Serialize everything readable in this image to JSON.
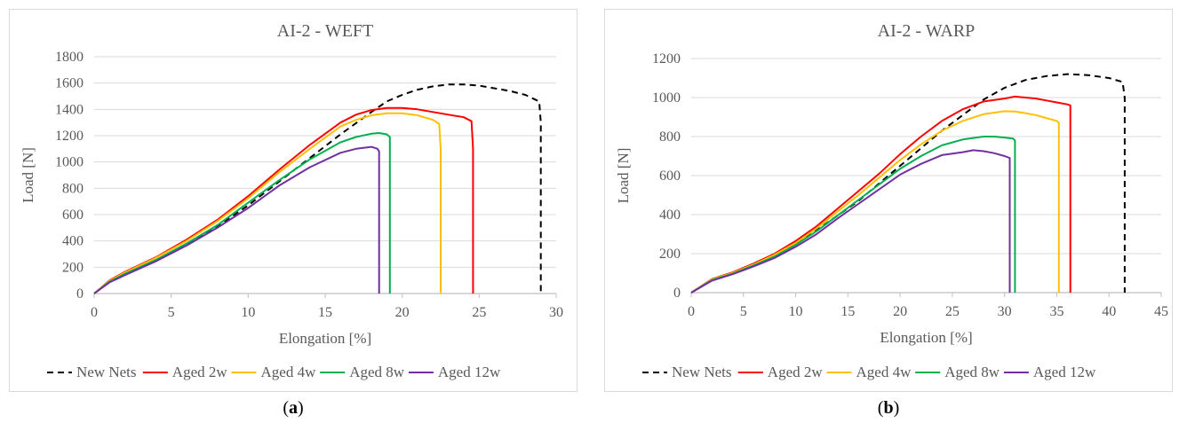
{
  "captions": [
    {
      "pre": "(",
      "letter": "a",
      "post": ")"
    },
    {
      "pre": "(",
      "letter": "b",
      "post": ")"
    }
  ],
  "colors": {
    "new_nets": "#000000",
    "aged_2w": "#ff0000",
    "aged_4w": "#ffc000",
    "aged_8w": "#00b050",
    "aged_12w": "#7030a0",
    "axis": "#bfbfbf",
    "grid": "#d9d9d9",
    "text": "#595959"
  },
  "chart_data": [
    {
      "type": "line",
      "title": "AI-2 - WEFT",
      "xlabel": "Elongation [%]",
      "ylabel": "Load [N]",
      "xlim": [
        0,
        30
      ],
      "ylim": [
        0,
        1800
      ],
      "xticks": [
        0,
        5,
        10,
        15,
        20,
        25,
        30
      ],
      "yticks": [
        0,
        200,
        400,
        600,
        800,
        1000,
        1200,
        1400,
        1600,
        1800
      ],
      "grid": "horizontal",
      "legend_position": "bottom",
      "series": [
        {
          "name": "New Nets",
          "color": "#000000",
          "dash": true,
          "x": [
            0,
            1,
            2,
            4,
            6,
            8,
            10,
            12,
            14,
            16,
            18,
            19,
            20,
            21,
            22,
            23,
            24,
            25,
            26,
            27,
            28,
            28.9,
            29.0,
            29.0
          ],
          "y": [
            0,
            90,
            150,
            250,
            370,
            510,
            670,
            850,
            1030,
            1210,
            1380,
            1460,
            1510,
            1550,
            1575,
            1590,
            1590,
            1580,
            1560,
            1540,
            1510,
            1460,
            1300,
            0
          ]
        },
        {
          "name": "Aged 2w",
          "color": "#ff0000",
          "dash": false,
          "x": [
            0,
            1,
            2,
            4,
            6,
            8,
            10,
            12,
            14,
            16,
            17,
            18,
            19,
            20,
            21,
            22,
            23,
            24,
            24.5,
            24.6,
            24.6
          ],
          "y": [
            0,
            100,
            165,
            275,
            410,
            560,
            740,
            940,
            1130,
            1300,
            1360,
            1395,
            1410,
            1410,
            1400,
            1380,
            1360,
            1340,
            1310,
            1100,
            0
          ]
        },
        {
          "name": "Aged 4w",
          "color": "#ffc000",
          "dash": false,
          "x": [
            0,
            1,
            2,
            4,
            6,
            8,
            10,
            12,
            14,
            16,
            17,
            18,
            19,
            20,
            21,
            22,
            22.4,
            22.5,
            22.5
          ],
          "y": [
            0,
            95,
            160,
            270,
            400,
            550,
            725,
            920,
            1100,
            1270,
            1320,
            1355,
            1370,
            1370,
            1355,
            1320,
            1290,
            1100,
            0
          ]
        },
        {
          "name": "Aged 8w",
          "color": "#00b050",
          "dash": false,
          "x": [
            0,
            1,
            2,
            4,
            6,
            8,
            10,
            12,
            14,
            16,
            17,
            18,
            18.5,
            19.0,
            19.2,
            19.2
          ],
          "y": [
            0,
            90,
            150,
            255,
            380,
            520,
            690,
            860,
            1020,
            1150,
            1190,
            1215,
            1220,
            1210,
            1190,
            0
          ]
        },
        {
          "name": "Aged 12w",
          "color": "#7030a0",
          "dash": false,
          "x": [
            0,
            1,
            2,
            4,
            6,
            8,
            10,
            12,
            14,
            16,
            17,
            18,
            18.4,
            18.5,
            18.5
          ],
          "y": [
            0,
            85,
            140,
            245,
            365,
            500,
            650,
            820,
            960,
            1070,
            1100,
            1115,
            1100,
            1080,
            0
          ]
        }
      ]
    },
    {
      "type": "line",
      "title": "AI-2 - WARP",
      "xlabel": "Elongation [%]",
      "ylabel": "Load [N]",
      "xlim": [
        0,
        45
      ],
      "ylim": [
        0,
        1200
      ],
      "xticks": [
        0,
        5,
        10,
        15,
        20,
        25,
        30,
        35,
        40,
        45
      ],
      "yticks": [
        0,
        200,
        400,
        600,
        800,
        1000,
        1200
      ],
      "grid": "horizontal",
      "legend_position": "bottom",
      "series": [
        {
          "name": "New Nets",
          "color": "#000000",
          "dash": true,
          "x": [
            0,
            2,
            4,
            6,
            8,
            10,
            12,
            14,
            16,
            18,
            20,
            22,
            24,
            26,
            28,
            30,
            32,
            34,
            36,
            38,
            40,
            41.3,
            41.5,
            41.5
          ],
          "y": [
            0,
            65,
            100,
            140,
            190,
            250,
            320,
            395,
            470,
            560,
            650,
            740,
            830,
            910,
            990,
            1050,
            1090,
            1110,
            1120,
            1115,
            1100,
            1080,
            1000,
            0
          ]
        },
        {
          "name": "Aged 2w",
          "color": "#ff0000",
          "dash": false,
          "x": [
            0,
            2,
            4,
            6,
            8,
            10,
            12,
            14,
            16,
            18,
            20,
            22,
            24,
            26,
            28,
            30,
            31,
            32,
            33,
            34,
            35,
            36,
            36.3,
            36.3
          ],
          "y": [
            0,
            70,
            105,
            150,
            200,
            265,
            340,
            430,
            520,
            610,
            710,
            800,
            880,
            940,
            980,
            995,
            1005,
            1000,
            995,
            985,
            975,
            965,
            960,
            0
          ]
        },
        {
          "name": "Aged 4w",
          "color": "#ffc000",
          "dash": false,
          "x": [
            0,
            2,
            4,
            6,
            8,
            10,
            12,
            14,
            16,
            18,
            20,
            22,
            24,
            26,
            28,
            30,
            31,
            32,
            33,
            34,
            35,
            35.2,
            35.2
          ],
          "y": [
            0,
            68,
            102,
            145,
            195,
            255,
            330,
            415,
            500,
            590,
            680,
            760,
            830,
            880,
            915,
            930,
            928,
            920,
            910,
            895,
            880,
            870,
            0
          ]
        },
        {
          "name": "Aged 8w",
          "color": "#00b050",
          "dash": false,
          "x": [
            0,
            2,
            4,
            6,
            8,
            10,
            12,
            14,
            16,
            18,
            20,
            22,
            24,
            26,
            28,
            29,
            30,
            30.8,
            31.0,
            31.0
          ],
          "y": [
            0,
            65,
            98,
            140,
            185,
            245,
            315,
            395,
            475,
            555,
            635,
            700,
            755,
            785,
            800,
            800,
            795,
            790,
            780,
            0
          ]
        },
        {
          "name": "Aged 12w",
          "color": "#7030a0",
          "dash": false,
          "x": [
            0,
            2,
            4,
            6,
            8,
            10,
            12,
            14,
            16,
            18,
            20,
            22,
            24,
            26,
            27,
            28,
            29,
            30,
            30.5,
            30.5
          ],
          "y": [
            0,
            62,
            95,
            135,
            178,
            235,
            300,
            380,
            455,
            530,
            605,
            660,
            705,
            720,
            730,
            725,
            715,
            700,
            690,
            0
          ]
        }
      ]
    }
  ]
}
